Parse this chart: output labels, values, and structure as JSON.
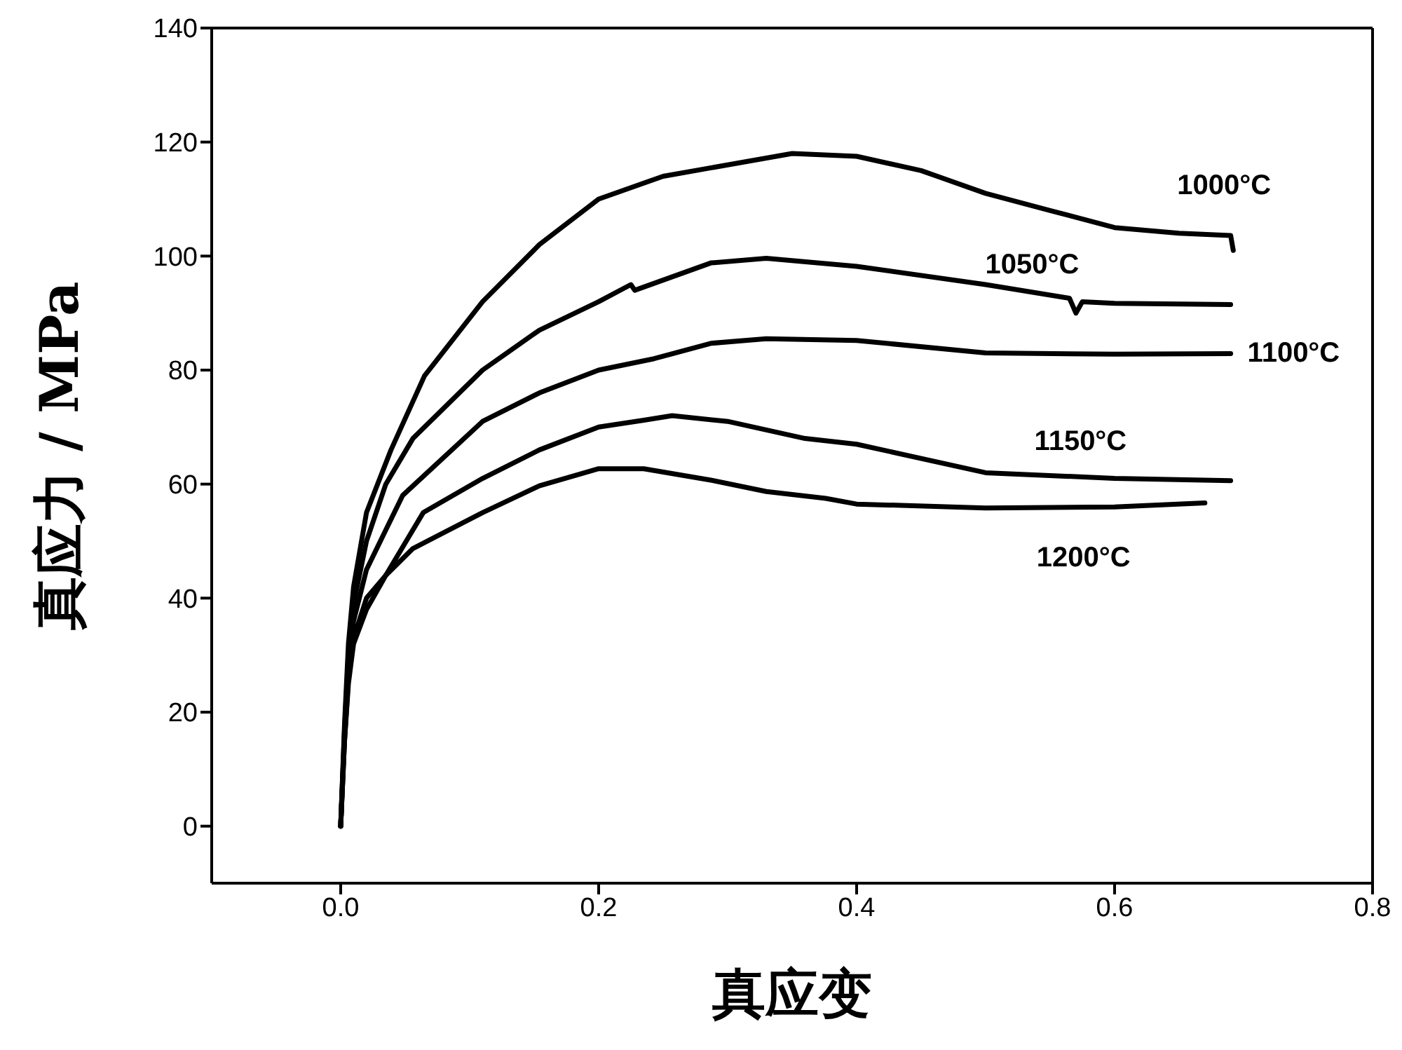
{
  "chart_data": {
    "type": "line",
    "xlabel": "真应变",
    "ylabel": "真应力 / MPa",
    "xlim": [
      -0.1,
      0.8
    ],
    "ylim": [
      -10,
      140
    ],
    "xticks": [
      {
        "value": 0,
        "label": "0.0"
      },
      0.2,
      0.4,
      0.6,
      0.8
    ],
    "yticks": [
      0,
      20,
      40,
      60,
      80,
      100,
      120,
      140
    ],
    "marker": "none",
    "line_style": "solid",
    "series": [
      {
        "name": "1000°C",
        "color": "#000000",
        "x": [
          0,
          0.003,
          0.006,
          0.01,
          0.02,
          0.039,
          0.065,
          0.11,
          0.154,
          0.2,
          0.25,
          0.3,
          0.35,
          0.4,
          0.45,
          0.5,
          0.55,
          0.6,
          0.65,
          0.69,
          0.692
        ],
        "values": [
          0,
          18,
          32,
          42,
          55,
          66,
          79,
          92,
          102,
          110,
          114,
          116,
          118,
          117.5,
          115,
          111,
          108,
          105,
          104,
          103.6,
          101
        ]
      },
      {
        "name": "1050°C",
        "color": "#000000",
        "x": [
          0,
          0.003,
          0.006,
          0.01,
          0.02,
          0.035,
          0.056,
          0.11,
          0.154,
          0.2,
          0.225,
          0.228,
          0.287,
          0.33,
          0.4,
          0.5,
          0.565,
          0.57,
          0.575,
          0.6,
          0.69
        ],
        "values": [
          0,
          17,
          30,
          39,
          50,
          60,
          68,
          80,
          87,
          92,
          95,
          94,
          98.8,
          99.6,
          98.2,
          95,
          92.6,
          90,
          92,
          91.7,
          91.5
        ]
      },
      {
        "name": "1100°C",
        "color": "#000000",
        "x": [
          0,
          0.003,
          0.006,
          0.01,
          0.02,
          0.048,
          0.11,
          0.154,
          0.2,
          0.243,
          0.287,
          0.33,
          0.4,
          0.5,
          0.6,
          0.69
        ],
        "values": [
          0,
          16,
          28,
          36,
          45,
          58,
          71,
          76,
          80,
          82,
          84.7,
          85.5,
          85.2,
          83,
          82.8,
          82.9
        ]
      },
      {
        "name": "1150°C",
        "color": "#000000",
        "x": [
          0,
          0.003,
          0.006,
          0.01,
          0.02,
          0.035,
          0.064,
          0.11,
          0.154,
          0.2,
          0.235,
          0.257,
          0.3,
          0.36,
          0.4,
          0.5,
          0.6,
          0.69
        ],
        "values": [
          0,
          15,
          26,
          33,
          40,
          44,
          55,
          61,
          66,
          70,
          71.2,
          72,
          71,
          68,
          67,
          62,
          61,
          60.6
        ]
      },
      {
        "name": "1200°C",
        "color": "#000000",
        "x": [
          0,
          0.003,
          0.006,
          0.01,
          0.02,
          0.035,
          0.056,
          0.11,
          0.154,
          0.2,
          0.235,
          0.287,
          0.33,
          0.376,
          0.4,
          0.5,
          0.6,
          0.67
        ],
        "values": [
          0,
          15,
          25,
          32,
          38,
          44,
          48.7,
          55,
          59.7,
          62.7,
          62.7,
          60.7,
          58.7,
          57.5,
          56.5,
          55.8,
          56,
          56.7
        ]
      }
    ]
  }
}
